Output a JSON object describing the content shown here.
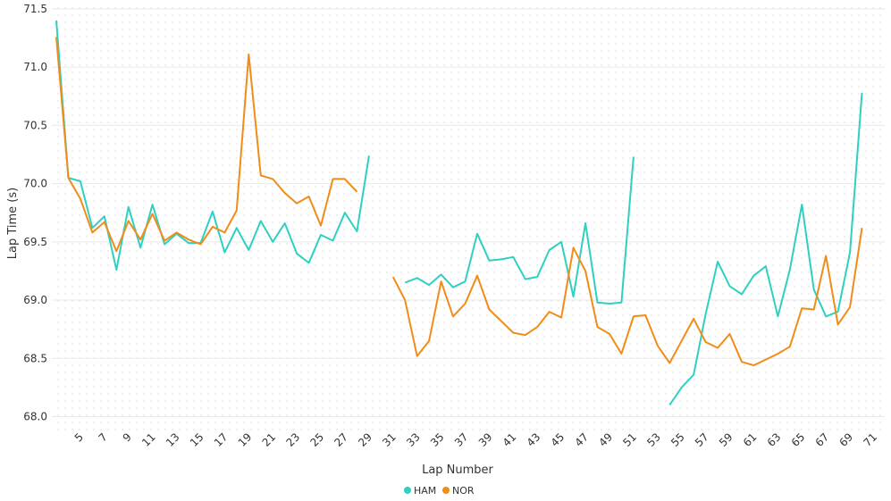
{
  "chart_data": {
    "type": "line",
    "xlabel": "Lap Number",
    "ylabel": "Lap Time (s)",
    "xlim": [
      3,
      71
    ],
    "ylim": [
      67.95,
      71.5
    ],
    "yticks": [
      68.0,
      68.5,
      69.0,
      69.5,
      70.0,
      70.5,
      71.0,
      71.5
    ],
    "ytick_labels": [
      "68.0",
      "68.5",
      "69.0",
      "69.5",
      "70.0",
      "70.5",
      "71.0",
      "71.5"
    ],
    "xticks": [
      5,
      7,
      9,
      11,
      13,
      15,
      17,
      19,
      21,
      23,
      25,
      27,
      29,
      31,
      33,
      35,
      37,
      39,
      41,
      43,
      45,
      47,
      49,
      51,
      53,
      55,
      57,
      59,
      61,
      63,
      65,
      67,
      69,
      71
    ],
    "xtick_labels": [
      "5",
      "7",
      "9",
      "11",
      "13",
      "15",
      "17",
      "19",
      "21",
      "23",
      "25",
      "27",
      "29",
      "31",
      "33",
      "35",
      "37",
      "39",
      "41",
      "43",
      "45",
      "47",
      "49",
      "51",
      "53",
      "55",
      "57",
      "59",
      "61",
      "63",
      "65",
      "67",
      "69",
      "71"
    ],
    "grid": true,
    "legend_position": "bottom-center",
    "series": [
      {
        "name": "HAM",
        "color": "#2ed1c1",
        "points": [
          [
            3,
            71.4
          ],
          [
            4,
            70.05
          ],
          [
            5,
            70.02
          ],
          [
            6,
            69.62
          ],
          [
            7,
            69.72
          ],
          [
            8,
            69.26
          ],
          [
            9,
            69.8
          ],
          [
            10,
            69.45
          ],
          [
            11,
            69.82
          ],
          [
            12,
            69.48
          ],
          [
            13,
            69.57
          ],
          [
            14,
            69.49
          ],
          [
            15,
            69.49
          ],
          [
            16,
            69.76
          ],
          [
            17,
            69.41
          ],
          [
            18,
            69.62
          ],
          [
            19,
            69.43
          ],
          [
            20,
            69.68
          ],
          [
            21,
            69.5
          ],
          [
            22,
            69.66
          ],
          [
            23,
            69.4
          ],
          [
            24,
            69.32
          ],
          [
            25,
            69.56
          ],
          [
            26,
            69.51
          ],
          [
            27,
            69.75
          ],
          [
            28,
            69.59
          ],
          [
            29,
            70.24
          ],
          [
            32,
            69.15
          ],
          [
            33,
            69.19
          ],
          [
            34,
            69.13
          ],
          [
            35,
            69.22
          ],
          [
            36,
            69.11
          ],
          [
            37,
            69.16
          ],
          [
            38,
            69.57
          ],
          [
            39,
            69.34
          ],
          [
            40,
            69.35
          ],
          [
            41,
            69.37
          ],
          [
            42,
            69.18
          ],
          [
            43,
            69.2
          ],
          [
            44,
            69.43
          ],
          [
            45,
            69.5
          ],
          [
            46,
            69.03
          ],
          [
            47,
            69.66
          ],
          [
            48,
            68.98
          ],
          [
            49,
            68.97
          ],
          [
            50,
            68.98
          ],
          [
            51,
            70.23
          ],
          [
            54,
            68.1
          ],
          [
            55,
            68.25
          ],
          [
            56,
            68.36
          ],
          [
            57,
            68.88
          ],
          [
            58,
            69.33
          ],
          [
            59,
            69.12
          ],
          [
            60,
            69.05
          ],
          [
            61,
            69.21
          ],
          [
            62,
            69.29
          ],
          [
            63,
            68.86
          ],
          [
            64,
            69.26
          ],
          [
            65,
            69.82
          ],
          [
            66,
            69.09
          ],
          [
            67,
            68.86
          ],
          [
            68,
            68.9
          ],
          [
            69,
            69.41
          ],
          [
            70,
            70.78
          ]
        ]
      },
      {
        "name": "NOR",
        "color": "#f28c18",
        "points": [
          [
            3,
            71.26
          ],
          [
            4,
            70.05
          ],
          [
            5,
            69.87
          ],
          [
            6,
            69.58
          ],
          [
            7,
            69.67
          ],
          [
            8,
            69.42
          ],
          [
            9,
            69.68
          ],
          [
            10,
            69.52
          ],
          [
            11,
            69.74
          ],
          [
            12,
            69.51
          ],
          [
            13,
            69.58
          ],
          [
            14,
            69.52
          ],
          [
            15,
            69.48
          ],
          [
            16,
            69.63
          ],
          [
            17,
            69.58
          ],
          [
            18,
            69.77
          ],
          [
            19,
            71.11
          ],
          [
            20,
            70.07
          ],
          [
            21,
            70.04
          ],
          [
            22,
            69.92
          ],
          [
            23,
            69.83
          ],
          [
            24,
            69.89
          ],
          [
            25,
            69.64
          ],
          [
            26,
            70.04
          ],
          [
            27,
            70.04
          ],
          [
            28,
            69.93
          ],
          [
            31,
            69.2
          ],
          [
            32,
            69.0
          ],
          [
            33,
            68.52
          ],
          [
            34,
            68.65
          ],
          [
            35,
            69.16
          ],
          [
            36,
            68.86
          ],
          [
            37,
            68.97
          ],
          [
            38,
            69.21
          ],
          [
            39,
            68.92
          ],
          [
            40,
            68.82
          ],
          [
            41,
            68.72
          ],
          [
            42,
            68.7
          ],
          [
            43,
            68.77
          ],
          [
            44,
            68.9
          ],
          [
            45,
            68.85
          ],
          [
            46,
            69.45
          ],
          [
            47,
            69.25
          ],
          [
            48,
            68.77
          ],
          [
            49,
            68.71
          ],
          [
            50,
            68.54
          ],
          [
            51,
            68.86
          ],
          [
            52,
            68.87
          ],
          [
            53,
            68.61
          ],
          [
            54,
            68.46
          ],
          [
            55,
            68.65
          ],
          [
            56,
            68.84
          ],
          [
            57,
            68.64
          ],
          [
            58,
            68.59
          ],
          [
            59,
            68.71
          ],
          [
            60,
            68.47
          ],
          [
            61,
            68.44
          ],
          [
            62,
            68.49
          ],
          [
            63,
            68.54
          ],
          [
            64,
            68.6
          ],
          [
            65,
            68.93
          ],
          [
            66,
            68.92
          ],
          [
            67,
            69.38
          ],
          [
            68,
            68.79
          ],
          [
            69,
            68.94
          ],
          [
            70,
            69.62
          ]
        ]
      }
    ]
  }
}
